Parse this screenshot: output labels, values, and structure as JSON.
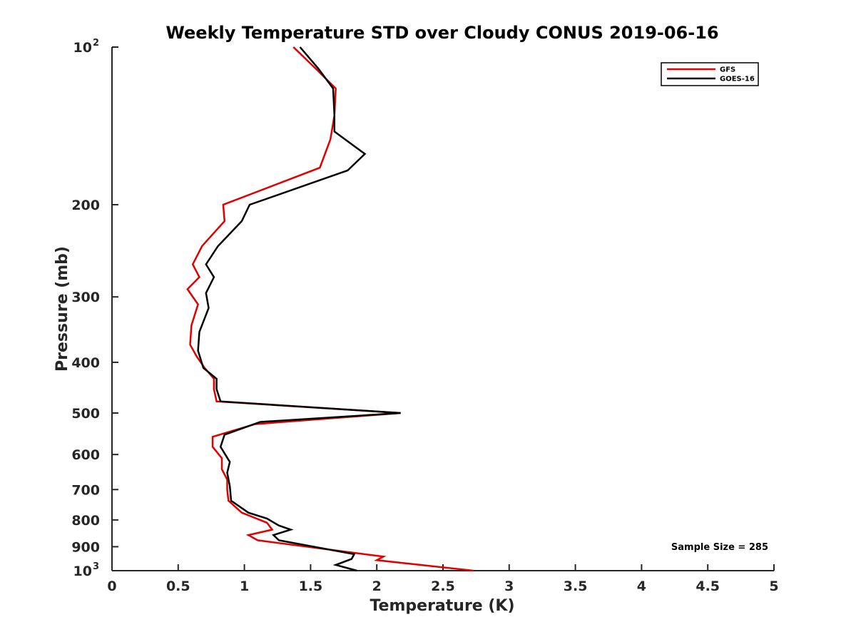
{
  "chart_data": {
    "type": "line",
    "title": "Weekly Temperature STD over Cloudy CONUS 2019-06-16",
    "xlabel": "Temperature (K)",
    "ylabel": "Pressure (mb)",
    "xlim": [
      0,
      5
    ],
    "ylim": [
      100,
      1000
    ],
    "y_scale": "log",
    "y_reversed": true,
    "grid": false,
    "legend_position": "top-right",
    "x_ticks": [
      "0",
      "0.5",
      "1",
      "1.5",
      "2",
      "2.5",
      "3",
      "3.5",
      "4",
      "4.5",
      "5"
    ],
    "y_ticks": [
      {
        "value": 100,
        "base": "10",
        "exp": "2"
      },
      {
        "value": 200,
        "label": "200"
      },
      {
        "value": 300,
        "label": "300"
      },
      {
        "value": 400,
        "label": "400"
      },
      {
        "value": 500,
        "label": "500"
      },
      {
        "value": 600,
        "label": "600"
      },
      {
        "value": 700,
        "label": "700"
      },
      {
        "value": 800,
        "label": "800"
      },
      {
        "value": 900,
        "label": "900"
      },
      {
        "value": 1000,
        "base": "10",
        "exp": "3"
      }
    ],
    "series": [
      {
        "name": "GFS",
        "color": "#e00000",
        "points": [
          [
            1.37,
            100
          ],
          [
            1.54,
            110
          ],
          [
            1.69,
            120
          ],
          [
            1.68,
            135
          ],
          [
            1.65,
            150
          ],
          [
            1.57,
            170
          ],
          [
            0.84,
            200
          ],
          [
            0.85,
            215
          ],
          [
            0.68,
            240
          ],
          [
            0.61,
            260
          ],
          [
            0.66,
            275
          ],
          [
            0.57,
            290
          ],
          [
            0.65,
            310
          ],
          [
            0.6,
            340
          ],
          [
            0.59,
            370
          ],
          [
            0.64,
            390
          ],
          [
            0.7,
            410
          ],
          [
            0.77,
            430
          ],
          [
            0.77,
            450
          ],
          [
            0.79,
            475
          ],
          [
            2.18,
            500
          ],
          [
            1.08,
            525
          ],
          [
            0.76,
            555
          ],
          [
            0.76,
            580
          ],
          [
            0.83,
            610
          ],
          [
            0.83,
            640
          ],
          [
            0.87,
            670
          ],
          [
            0.87,
            700
          ],
          [
            0.88,
            735
          ],
          [
            0.98,
            775
          ],
          [
            1.17,
            810
          ],
          [
            1.21,
            835
          ],
          [
            1.03,
            855
          ],
          [
            1.1,
            875
          ],
          [
            2.05,
            940
          ],
          [
            2.0,
            955
          ],
          [
            2.73,
            1000
          ]
        ]
      },
      {
        "name": "GOES-16",
        "color": "#000000",
        "points": [
          [
            1.42,
            100
          ],
          [
            1.56,
            110
          ],
          [
            1.67,
            120
          ],
          [
            1.68,
            135
          ],
          [
            1.68,
            145
          ],
          [
            1.91,
            160
          ],
          [
            1.78,
            172
          ],
          [
            1.04,
            200
          ],
          [
            0.98,
            215
          ],
          [
            0.8,
            240
          ],
          [
            0.71,
            260
          ],
          [
            0.77,
            275
          ],
          [
            0.71,
            295
          ],
          [
            0.73,
            315
          ],
          [
            0.66,
            350
          ],
          [
            0.65,
            380
          ],
          [
            0.69,
            410
          ],
          [
            0.79,
            430
          ],
          [
            0.79,
            450
          ],
          [
            0.82,
            475
          ],
          [
            2.18,
            500
          ],
          [
            1.12,
            520
          ],
          [
            0.85,
            550
          ],
          [
            0.82,
            580
          ],
          [
            0.89,
            620
          ],
          [
            0.87,
            650
          ],
          [
            0.89,
            690
          ],
          [
            0.9,
            735
          ],
          [
            1.03,
            775
          ],
          [
            1.17,
            795
          ],
          [
            1.26,
            820
          ],
          [
            1.35,
            835
          ],
          [
            1.22,
            855
          ],
          [
            1.26,
            875
          ],
          [
            1.83,
            930
          ],
          [
            1.81,
            950
          ],
          [
            1.69,
            975
          ],
          [
            1.85,
            1000
          ]
        ]
      }
    ],
    "annotation": "Sample Size = 285"
  }
}
